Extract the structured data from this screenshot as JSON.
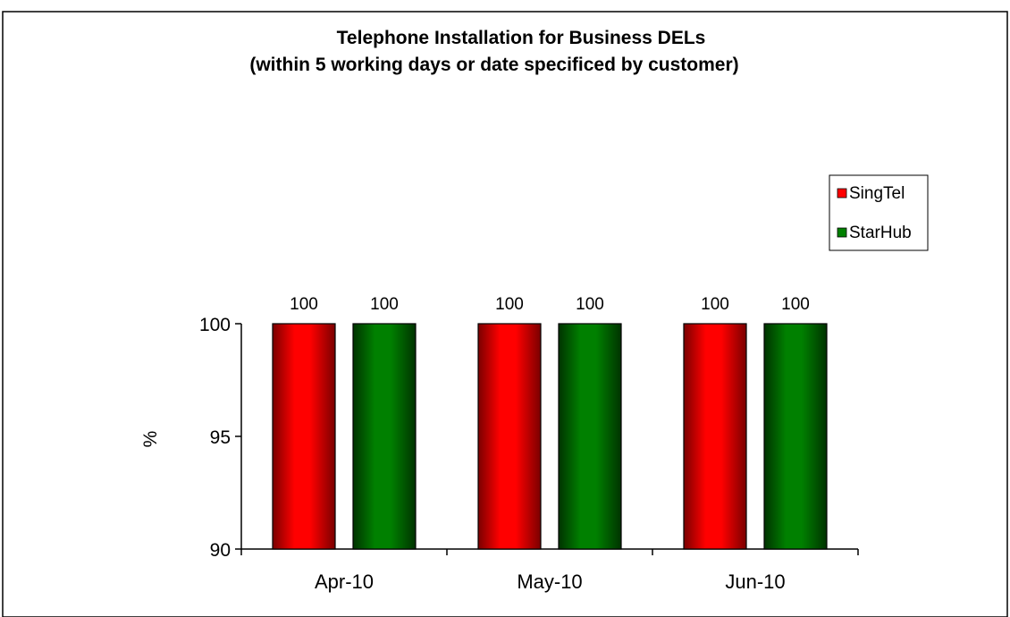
{
  "chart_data": {
    "type": "bar",
    "title": "Telephone Installation for Business DELs",
    "subtitle": "(within 5 working days or date specificed by customer)",
    "xlabel": "",
    "ylabel": "%",
    "categories": [
      "Apr-10",
      "May-10",
      "Jun-10"
    ],
    "ylim": [
      90,
      100
    ],
    "yticks": [
      "90",
      "95",
      "100"
    ],
    "grid": false,
    "legend_position": "right",
    "series": [
      {
        "name": "SingTel",
        "values": [
          100,
          100,
          100
        ],
        "color": "#ff0000",
        "dark_color": "#7a0000"
      },
      {
        "name": "StarHub",
        "values": [
          100,
          100,
          100
        ],
        "color": "#008000",
        "dark_color": "#003300"
      }
    ],
    "data_labels": [
      [
        "100",
        "100",
        "100"
      ],
      [
        "100",
        "100",
        "100"
      ]
    ]
  }
}
